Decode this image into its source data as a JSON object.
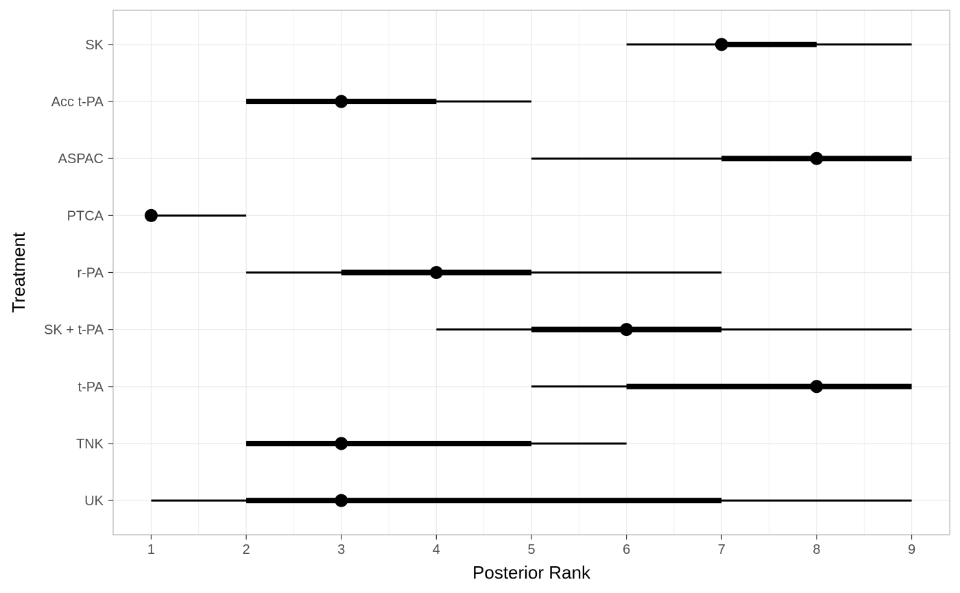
{
  "chart_data": {
    "type": "interval",
    "title": "",
    "xlabel": "Posterior Rank",
    "ylabel": "Treatment",
    "xlim": [
      0.6,
      9.4
    ],
    "x_ticks": [
      1,
      2,
      3,
      4,
      5,
      6,
      7,
      8,
      9
    ],
    "grid": true,
    "legend": "none",
    "colors": {
      "marks": "#000000",
      "panel_border": "#b3b3b3",
      "grid": "#ebebeb"
    },
    "categories": [
      "SK",
      "Acc t-PA",
      "ASPAC",
      "PTCA",
      "r-PA",
      "SK + t-PA",
      "t-PA",
      "TNK",
      "UK"
    ],
    "points": [
      {
        "treatment": "SK",
        "median": 7,
        "inner": [
          7,
          8
        ],
        "outer": [
          6,
          9
        ]
      },
      {
        "treatment": "Acc t-PA",
        "median": 3,
        "inner": [
          2,
          4
        ],
        "outer": [
          2,
          5
        ]
      },
      {
        "treatment": "ASPAC",
        "median": 8,
        "inner": [
          7,
          9
        ],
        "outer": [
          5,
          9
        ]
      },
      {
        "treatment": "PTCA",
        "median": 1,
        "inner": [
          1,
          1
        ],
        "outer": [
          1,
          2
        ]
      },
      {
        "treatment": "r-PA",
        "median": 4,
        "inner": [
          3,
          5
        ],
        "outer": [
          2,
          7
        ]
      },
      {
        "treatment": "SK + t-PA",
        "median": 6,
        "inner": [
          5,
          7
        ],
        "outer": [
          4,
          9
        ]
      },
      {
        "treatment": "t-PA",
        "median": 8,
        "inner": [
          6,
          9
        ],
        "outer": [
          5,
          9
        ]
      },
      {
        "treatment": "TNK",
        "median": 3,
        "inner": [
          2,
          5
        ],
        "outer": [
          2,
          6
        ]
      },
      {
        "treatment": "UK",
        "median": 3,
        "inner": [
          2,
          7
        ],
        "outer": [
          1,
          9
        ]
      }
    ]
  }
}
